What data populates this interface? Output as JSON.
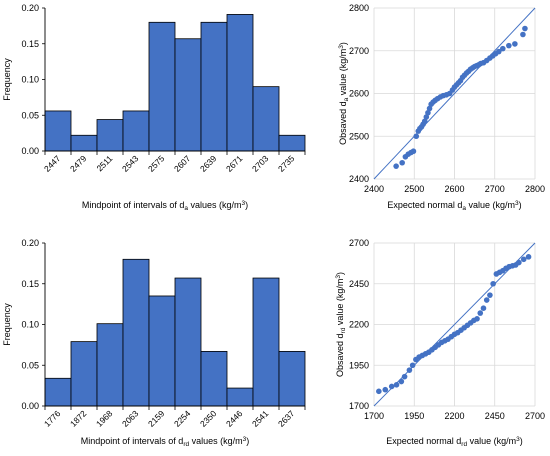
{
  "chart_data": [
    {
      "type": "bar",
      "ylabel": "Frequency",
      "xlabel": {
        "main": "Mindpoint of intervals of d",
        "sub": "a",
        "tail": " values (kg/m",
        "sup": "3",
        "close": ")"
      },
      "categories": [
        "2447",
        "2479",
        "2511",
        "2543",
        "2575",
        "2607",
        "2639",
        "2671",
        "2703",
        "2735"
      ],
      "values": [
        0.056,
        0.022,
        0.044,
        0.056,
        0.18,
        0.157,
        0.18,
        0.191,
        0.09,
        0.022
      ],
      "ylim": [
        0,
        0.2
      ],
      "yticks": [
        "0.00",
        "0.05",
        "0.10",
        "0.15",
        "0.20"
      ],
      "color": "#4472C4"
    },
    {
      "type": "scatter",
      "ylabel": {
        "main": "Obsaved d",
        "sub": "a",
        "tail": " value (kg/m",
        "sup": "3",
        "close": ")"
      },
      "xlabel": {
        "main": "Expected normal d",
        "sub": "a",
        "tail": " value (kg/m",
        "sup": "3",
        "close": ")"
      },
      "xlim": [
        2400,
        2800
      ],
      "ylim": [
        2400,
        2800
      ],
      "xticks": [
        "2400",
        "2500",
        "2600",
        "2700",
        "2800"
      ],
      "yticks": [
        "2400",
        "2500",
        "2600",
        "2700",
        "2800"
      ],
      "reference_line": [
        [
          2400,
          2400
        ],
        [
          2800,
          2800
        ]
      ],
      "x": [
        2455,
        2470,
        2478,
        2485,
        2492,
        2498,
        2505,
        2510,
        2514,
        2518,
        2522,
        2526,
        2530,
        2534,
        2538,
        2542,
        2547,
        2552,
        2558,
        2565,
        2572,
        2580,
        2588,
        2595,
        2600,
        2605,
        2610,
        2615,
        2620,
        2625,
        2630,
        2635,
        2640,
        2645,
        2650,
        2655,
        2660,
        2665,
        2672,
        2680,
        2688,
        2695,
        2702,
        2710,
        2720,
        2735,
        2750,
        2770,
        2775
      ],
      "y": [
        2430,
        2438,
        2452,
        2458,
        2462,
        2465,
        2500,
        2512,
        2518,
        2522,
        2528,
        2535,
        2545,
        2555,
        2565,
        2575,
        2580,
        2584,
        2588,
        2592,
        2595,
        2597,
        2600,
        2608,
        2615,
        2620,
        2625,
        2630,
        2638,
        2643,
        2648,
        2652,
        2657,
        2660,
        2663,
        2665,
        2667,
        2670,
        2672,
        2677,
        2683,
        2688,
        2693,
        2698,
        2705,
        2712,
        2716,
        2738,
        2752
      ],
      "color": "#4472C4"
    },
    {
      "type": "bar",
      "ylabel": "Frequency",
      "xlabel": {
        "main": "Mindpoint of intervals of d",
        "sub": "rd",
        "tail": " values (kg/m",
        "sup": "3",
        "close": ")"
      },
      "categories": [
        "1776",
        "1872",
        "1968",
        "2063",
        "2159",
        "2254",
        "2350",
        "2446",
        "2541",
        "2637"
      ],
      "values": [
        0.034,
        0.079,
        0.101,
        0.18,
        0.135,
        0.157,
        0.067,
        0.022,
        0.157,
        0.067
      ],
      "ylim": [
        0,
        0.2
      ],
      "yticks": [
        "0.00",
        "0.05",
        "0.10",
        "0.15",
        "0.20"
      ],
      "color": "#4472C4"
    },
    {
      "type": "scatter",
      "ylabel": {
        "main": "Obsaved d",
        "sub": "rd",
        "tail": " value (kg/m",
        "sup": "3",
        "close": ")"
      },
      "xlabel": {
        "main": "Expected normal d",
        "sub": "rd",
        "tail": " value (kg/m",
        "sup": "3",
        "close": ")"
      },
      "xlim": [
        1700,
        2700
      ],
      "ylim": [
        1700,
        2700
      ],
      "xticks": [
        "1700",
        "1950",
        "2200",
        "2450",
        "2700"
      ],
      "yticks": [
        "1700",
        "1950",
        "2200",
        "2450",
        "2700"
      ],
      "reference_line": [
        [
          1700,
          1700
        ],
        [
          2700,
          2700
        ]
      ],
      "x": [
        1730,
        1770,
        1810,
        1840,
        1870,
        1890,
        1920,
        1940,
        1960,
        1980,
        2000,
        2020,
        2040,
        2060,
        2080,
        2100,
        2120,
        2140,
        2160,
        2180,
        2200,
        2220,
        2240,
        2260,
        2280,
        2300,
        2320,
        2340,
        2360,
        2380,
        2400,
        2420,
        2440,
        2460,
        2480,
        2500,
        2520,
        2540,
        2560,
        2580,
        2600,
        2630,
        2660
      ],
      "y": [
        1790,
        1800,
        1820,
        1830,
        1850,
        1880,
        1920,
        1950,
        1985,
        2000,
        2010,
        2020,
        2030,
        2045,
        2060,
        2075,
        2090,
        2100,
        2110,
        2125,
        2140,
        2150,
        2165,
        2180,
        2195,
        2210,
        2225,
        2235,
        2270,
        2300,
        2350,
        2380,
        2450,
        2510,
        2520,
        2530,
        2545,
        2555,
        2560,
        2565,
        2580,
        2600,
        2615
      ],
      "color": "#4472C4"
    }
  ]
}
